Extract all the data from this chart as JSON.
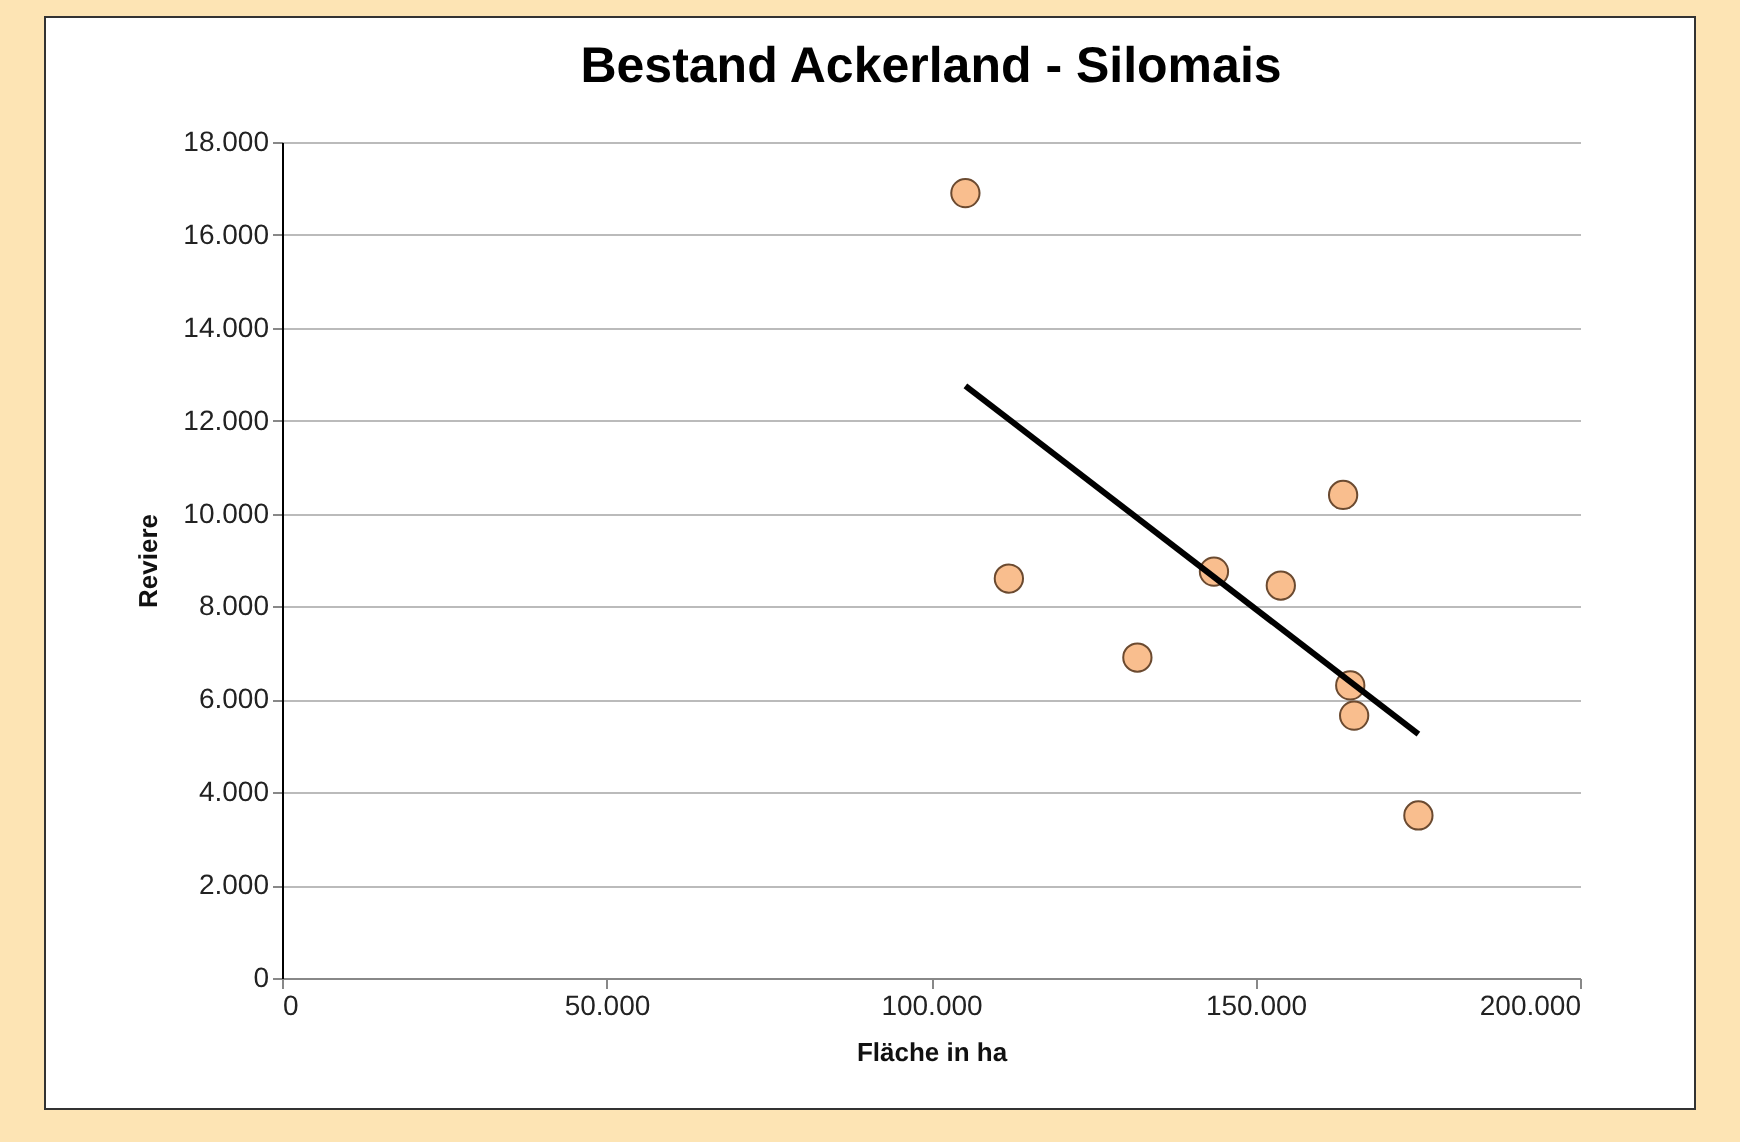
{
  "chart_data": {
    "type": "scatter",
    "title": "Bestand Ackerland - Silomais",
    "xlabel": "Fläche in ha",
    "ylabel": "Reviere",
    "x": [
      105300,
      112000,
      131800,
      143600,
      153900,
      163500,
      164600,
      165200,
      175100
    ],
    "series": [
      {
        "color": "#f9be8e",
        "marker": "circle",
        "values": [
          16900,
          8600,
          6900,
          8750,
          8450,
          10400,
          6300,
          5650,
          3500
        ]
      },
      {
        "type": "line",
        "color": "#000000",
        "marker": "none",
        "x": [
          105300,
          175100
        ],
        "values": [
          12750,
          5250
        ]
      }
    ],
    "xlim": [
      0,
      200000
    ],
    "ylim": [
      0,
      18000
    ],
    "xticks": [
      {
        "value": 0,
        "label": "0"
      },
      {
        "value": 50000,
        "label": "50.000"
      },
      {
        "value": 100000,
        "label": "100.000"
      },
      {
        "value": 150000,
        "label": "150.000"
      },
      {
        "value": 200000,
        "label": "200.000"
      }
    ],
    "yticks": [
      {
        "value": 0,
        "label": "0"
      },
      {
        "value": 2000,
        "label": "2.000"
      },
      {
        "value": 4000,
        "label": "4.000"
      },
      {
        "value": 6000,
        "label": "6.000"
      },
      {
        "value": 8000,
        "label": "8.000"
      },
      {
        "value": 10000,
        "label": "10.000"
      },
      {
        "value": 12000,
        "label": "12.000"
      },
      {
        "value": 14000,
        "label": "14.000"
      },
      {
        "value": 16000,
        "label": "16.000"
      },
      {
        "value": 18000,
        "label": "18.000"
      }
    ],
    "grid": "y",
    "line_style": "solid"
  }
}
